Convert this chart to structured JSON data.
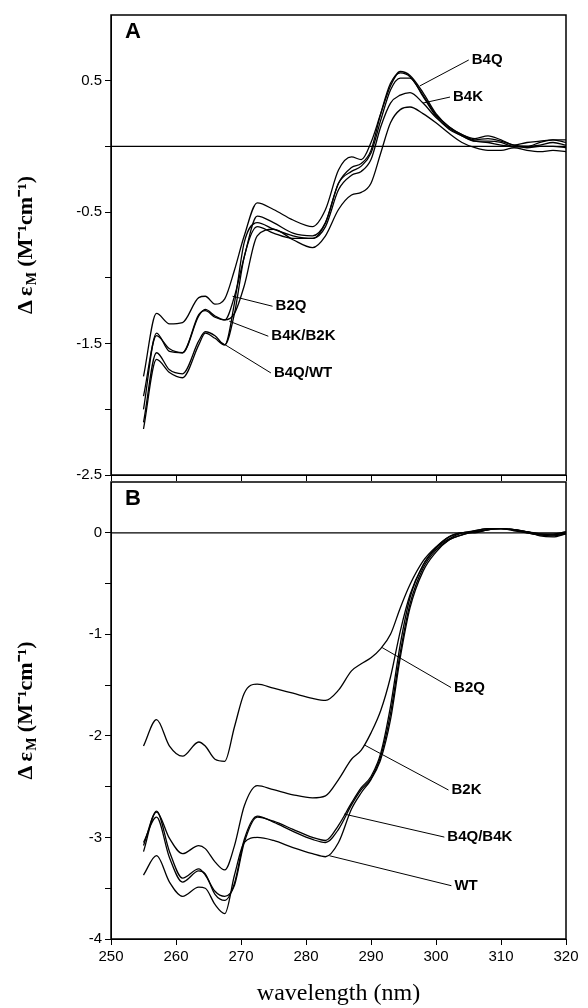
{
  "chart_data": [
    {
      "type": "line",
      "title": "A",
      "ylabel": "Δ ε$_{M}$ (M⁻¹cm⁻¹)",
      "tick_labels": "y",
      "marker": "none",
      "grid": false,
      "x": [
        255,
        257,
        259,
        261,
        263.5,
        264.5,
        266,
        267.5,
        269,
        270.5,
        272.5,
        275,
        278,
        281,
        283,
        285,
        287,
        288.5,
        290,
        291.5,
        293,
        294.5,
        296,
        298,
        300,
        302,
        304,
        306,
        308,
        310,
        312,
        314,
        316,
        318,
        320
      ],
      "xlim": [
        250,
        320
      ],
      "xticks": [
        250,
        260,
        270,
        280,
        290,
        300,
        310,
        320
      ],
      "ylim": [
        -2.5,
        1.0
      ],
      "yticks": [
        {
          "value": 0.5,
          "label": "0.5"
        },
        {
          "value": 0,
          "label": null
        },
        {
          "value": -0.5,
          "label": "-0.5"
        },
        {
          "value": -1,
          "label": null
        },
        {
          "value": -1.5,
          "label": "-1.5"
        },
        {
          "value": -2,
          "label": null
        },
        {
          "value": -2.5,
          "label": "-2.5"
        }
      ],
      "series": [
        {
          "color": "#000000",
          "values": [
            -1.75,
            -1.27,
            -1.35,
            -1.34,
            -1.15,
            -1.14,
            -1.2,
            -1.16,
            -0.94,
            -0.68,
            -0.43,
            -0.48,
            -0.56,
            -0.61,
            -0.48,
            -0.18,
            -0.08,
            -0.1,
            0.03,
            0.25,
            0.46,
            0.57,
            0.54,
            0.41,
            0.25,
            0.15,
            0.09,
            0.05,
            0.06,
            0.04,
            0.01,
            0,
            0.03,
            0.05,
            0.05
          ]
        },
        {
          "color": "#000000",
          "values": [
            -1.9,
            -1.44,
            -1.54,
            -1.57,
            -1.29,
            -1.24,
            -1.29,
            -1.32,
            -1.14,
            -0.84,
            -0.53,
            -0.58,
            -0.66,
            -0.68,
            -0.58,
            -0.28,
            -0.19,
            -0.15,
            -0.05,
            0.2,
            0.43,
            0.52,
            0.52,
            0.38,
            0.23,
            0.13,
            0.08,
            0.04,
            0.04,
            0.03,
            0,
            0,
            0.01,
            0.03,
            0.01
          ]
        },
        {
          "color": "#000000",
          "values": [
            -2.0,
            -1.42,
            -1.56,
            -1.57,
            -1.28,
            -1.25,
            -1.3,
            -1.32,
            -1.27,
            -1.06,
            -0.68,
            -0.63,
            -0.71,
            -0.77,
            -0.68,
            -0.48,
            -0.37,
            -0.35,
            -0.28,
            -0.05,
            0.18,
            0.28,
            0.3,
            0.25,
            0.18,
            0.1,
            0.03,
            -0.01,
            -0.03,
            -0.03,
            -0.01,
            -0.03,
            -0.04,
            -0.03,
            -0.04
          ]
        },
        {
          "color": "#000000",
          "values": [
            -2.1,
            -1.57,
            -1.7,
            -1.73,
            -1.48,
            -1.41,
            -1.44,
            -1.51,
            -1.19,
            -0.73,
            -0.58,
            -0.63,
            -0.68,
            -0.7,
            -0.58,
            -0.28,
            -0.16,
            -0.13,
            -0.03,
            0.25,
            0.48,
            0.56,
            0.53,
            0.39,
            0.24,
            0.15,
            0.09,
            0.06,
            0.08,
            0.05,
            0.01,
            0.03,
            0.04,
            0.05,
            0.03
          ]
        },
        {
          "color": "#000000",
          "values": [
            -2.15,
            -1.62,
            -1.72,
            -1.76,
            -1.51,
            -1.42,
            -1.46,
            -1.51,
            -1.27,
            -0.84,
            -0.61,
            -0.66,
            -0.7,
            -0.7,
            -0.61,
            -0.33,
            -0.22,
            -0.19,
            -0.1,
            0.15,
            0.33,
            0.39,
            0.41,
            0.33,
            0.22,
            0.14,
            0.08,
            0.04,
            0.03,
            0.01,
            0,
            -0.01,
            0,
            0,
            -0.01
          ]
        }
      ],
      "ref_lines": [
        {
          "axis": "y",
          "value": 0
        }
      ],
      "annotations": [
        {
          "text": "B4Q",
          "x": 297.5,
          "y": 0.46
        },
        {
          "text": "B4K",
          "x": 298,
          "y": 0.33
        },
        {
          "text": "B2Q",
          "x": 268.7,
          "y": -1.14
        },
        {
          "text": "B4K/B2K",
          "x": 268.2,
          "y": -1.33
        },
        {
          "text": "B4Q/WT",
          "x": 266.6,
          "y": -1.48
        }
      ]
    },
    {
      "type": "line",
      "title": "B",
      "ylabel": "Δ ε$_{M}$ (M⁻¹cm⁻¹)",
      "xlabel": "wavelength (nm)",
      "marker": "none",
      "grid": false,
      "x": [
        255,
        257,
        259,
        261,
        263.5,
        264.5,
        266,
        267.5,
        269,
        270.5,
        272.5,
        275,
        278,
        281,
        283,
        285,
        287,
        288.5,
        290,
        291.5,
        293,
        294.5,
        296,
        298,
        300,
        302,
        304,
        306,
        308,
        310,
        312,
        314,
        316,
        318,
        320
      ],
      "xlim": [
        250,
        320
      ],
      "xticks": [
        250,
        260,
        270,
        280,
        290,
        300,
        310,
        320
      ],
      "ylim": [
        -4,
        0.5
      ],
      "yticks": [
        {
          "value": 0,
          "label": "0"
        },
        {
          "value": -0.5,
          "label": null
        },
        {
          "value": -1,
          "label": "-1"
        },
        {
          "value": -1.5,
          "label": null
        },
        {
          "value": -2,
          "label": "-2"
        },
        {
          "value": -2.5,
          "label": null
        },
        {
          "value": -3,
          "label": "-3"
        },
        {
          "value": -3.5,
          "label": null
        },
        {
          "value": -4,
          "label": "-4"
        }
      ],
      "series": [
        {
          "color": "#000000",
          "values": [
            -2.1,
            -1.84,
            -2.1,
            -2.2,
            -2.06,
            -2.1,
            -2.23,
            -2.25,
            -1.91,
            -1.58,
            -1.49,
            -1.53,
            -1.58,
            -1.63,
            -1.65,
            -1.55,
            -1.36,
            -1.29,
            -1.23,
            -1.14,
            -1.0,
            -0.74,
            -0.51,
            -0.28,
            -0.14,
            -0.04,
            0,
            0,
            0.03,
            0.04,
            0.03,
            0.01,
            -0.01,
            -0.02,
            0
          ]
        },
        {
          "color": "#000000",
          "values": [
            -3.08,
            -2.75,
            -3.01,
            -3.16,
            -3.08,
            -3.11,
            -3.24,
            -3.32,
            -3.08,
            -2.69,
            -2.49,
            -2.53,
            -2.58,
            -2.61,
            -2.59,
            -2.43,
            -2.23,
            -2.14,
            -1.97,
            -1.75,
            -1.42,
            -0.97,
            -0.61,
            -0.32,
            -0.15,
            -0.04,
            0,
            0.01,
            0.03,
            0.04,
            0.03,
            0.01,
            -0.01,
            -0.01,
            0.01
          ]
        },
        {
          "color": "#000000",
          "values": [
            -3.14,
            -2.74,
            -3.14,
            -3.4,
            -3.31,
            -3.37,
            -3.53,
            -3.58,
            -3.47,
            -3.05,
            -2.8,
            -2.84,
            -2.92,
            -3.0,
            -3.03,
            -2.88,
            -2.66,
            -2.51,
            -2.4,
            -2.17,
            -1.71,
            -1.1,
            -0.64,
            -0.32,
            -0.15,
            -0.06,
            0,
            0.02,
            0.04,
            0.04,
            0.03,
            0,
            -0.02,
            -0.02,
            0
          ]
        },
        {
          "color": "#000000",
          "values": [
            -3.05,
            -2.8,
            -3.2,
            -3.44,
            -3.33,
            -3.36,
            -3.56,
            -3.62,
            -3.45,
            -3.02,
            -2.79,
            -2.85,
            -2.94,
            -3.02,
            -3.05,
            -2.92,
            -2.68,
            -2.53,
            -2.42,
            -2.2,
            -1.78,
            -1.18,
            -0.7,
            -0.35,
            -0.17,
            -0.07,
            -0.02,
            0.02,
            0.04,
            0.04,
            0.03,
            0.01,
            -0.03,
            -0.04,
            -0.01
          ]
        },
        {
          "color": "#000000",
          "values": [
            -3.37,
            -3.18,
            -3.44,
            -3.58,
            -3.49,
            -3.5,
            -3.66,
            -3.75,
            -3.37,
            -3.05,
            -3.0,
            -3.03,
            -3.1,
            -3.16,
            -3.19,
            -3.05,
            -2.72,
            -2.56,
            -2.43,
            -2.23,
            -1.84,
            -1.23,
            -0.74,
            -0.38,
            -0.19,
            -0.07,
            -0.02,
            0.01,
            0.03,
            0.04,
            0.02,
            0,
            -0.02,
            -0.03,
            -0.01
          ]
        }
      ],
      "ref_lines": [
        {
          "axis": "y",
          "value": 0
        }
      ],
      "annotations": [
        {
          "text": "B2Q",
          "x": 291.7,
          "y": -1.13
        },
        {
          "text": "B2K",
          "x": 289.0,
          "y": -2.09
        },
        {
          "text": "B4Q/B4K",
          "x": 285.9,
          "y": -2.77
        },
        {
          "text": "WT",
          "x": 283.6,
          "y": -3.18
        }
      ]
    }
  ]
}
